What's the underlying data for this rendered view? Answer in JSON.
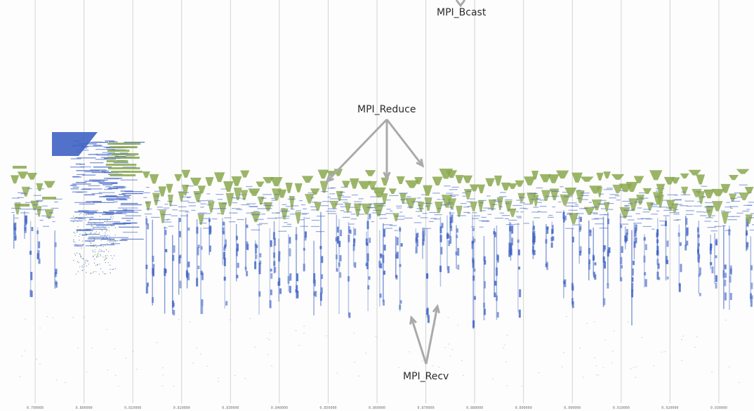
{
  "chart_data": {
    "type": "scatter",
    "x": [
      0.79,
      0.8,
      0.81,
      0.82,
      0.83,
      0.84,
      0.85,
      0.86,
      0.87,
      0.88,
      0.89,
      0.9,
      0.91,
      0.92,
      0.93
    ],
    "tick_labels": [
      "0.790000",
      "0.800000",
      "0.810000",
      "0.820000",
      "0.830000",
      "0.840000",
      "0.850000",
      "0.860000",
      "0.870000",
      "0.880000",
      "0.890000",
      "0.900000",
      "0.910000",
      "0.920000",
      "0.930000"
    ],
    "xlim": [
      0.7828,
      0.9372
    ],
    "grid": "vertical",
    "annotations": [
      {
        "label": "MPI_Bcast"
      },
      {
        "label": "MPI_Reduce"
      },
      {
        "label": "MPI_Recv"
      }
    ],
    "colors": {
      "send_recv": "#3f63c4",
      "collective": "#8aa84e",
      "gridline": "#d2d2d2",
      "arrow": "#aaaaaa"
    }
  }
}
